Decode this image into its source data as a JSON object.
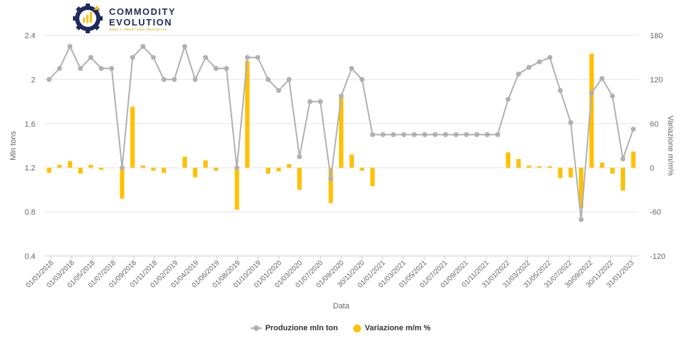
{
  "brand": {
    "line1": "COMMODITY",
    "line2": "EVOLUTION",
    "tagline": "SIMPLY. SMART AND INNOVATIVE",
    "colors": {
      "navy": "#1f2a5c",
      "gold": "#ffc000"
    }
  },
  "legend": {
    "line_label": "Produzione mln ton",
    "bar_label": "Variazione m/m %"
  },
  "chart_data": {
    "type": "bar+line",
    "xlabel": "Data",
    "ylabel_left": "Mln tons",
    "ylabel_right": "Variazione m/m%",
    "ylim_left": [
      0.4,
      2.4
    ],
    "yticks_left": [
      "2.4",
      "2",
      "1.6",
      "1.2",
      "0.8",
      "0.4"
    ],
    "ylim_right": [
      -120,
      180
    ],
    "yticks_right": [
      "180",
      "120",
      "60",
      "0",
      "-60",
      "-120"
    ],
    "xtick_labels": [
      "01/01/2018",
      "01/03/2018",
      "01/05/2018",
      "01/07/2018",
      "01/09/2018",
      "01/11/2018",
      "01/02/2019",
      "01/04/2019",
      "01/06/2019",
      "01/08/2019",
      "01/10/2019",
      "01/01/2020",
      "01/03/2020",
      "01/07/2020",
      "01/09/2020",
      "30/11/2020",
      "01/01/2021",
      "01/03/2021",
      "01/05/2021",
      "01/07/2021",
      "01/09/2021",
      "01/11/2021",
      "31/01/2022",
      "31/03/2022",
      "31/05/2022",
      "31/07/2022",
      "30/09/2022",
      "30/11/2022",
      "31/01/2023"
    ],
    "grid": true,
    "legend_position": "bottom-center",
    "series": [
      {
        "name": "Produzione mln ton",
        "type": "line",
        "color": "#b0b0b0",
        "axis": "left",
        "values": [
          2.0,
          2.1,
          2.3,
          2.1,
          2.2,
          2.1,
          2.1,
          1.2,
          2.2,
          2.3,
          2.2,
          2.0,
          2.0,
          2.3,
          2.0,
          2.2,
          2.1,
          2.1,
          1.2,
          2.2,
          2.2,
          2.0,
          1.9,
          2.0,
          1.3,
          1.8,
          1.8,
          1.1,
          1.85,
          2.1,
          2.0,
          1.5,
          1.5,
          1.5,
          1.5,
          1.5,
          1.5,
          1.5,
          1.5,
          1.5,
          1.5,
          1.5,
          1.5,
          1.5,
          1.82,
          2.05,
          2.11,
          2.16,
          2.2,
          1.9,
          1.61,
          0.73,
          1.88,
          2.01,
          1.85,
          1.28,
          1.55
        ]
      },
      {
        "name": "Variazione m/m %",
        "type": "bar",
        "color": "#ffc000",
        "axis": "right",
        "values": [
          -7,
          4,
          9,
          -8,
          4,
          -3,
          0,
          -42,
          83,
          3,
          -4,
          -7,
          0,
          15,
          -13,
          10,
          -4,
          0,
          -57,
          145,
          0,
          -8,
          -5,
          5,
          -30,
          0,
          0,
          -48,
          100,
          18,
          -4,
          -25,
          0,
          0,
          0,
          0,
          0,
          0,
          0,
          0,
          0,
          0,
          0,
          0,
          21,
          12,
          3,
          2,
          2,
          -14,
          -13,
          -55,
          155,
          7,
          -8,
          -31,
          22
        ]
      }
    ]
  }
}
